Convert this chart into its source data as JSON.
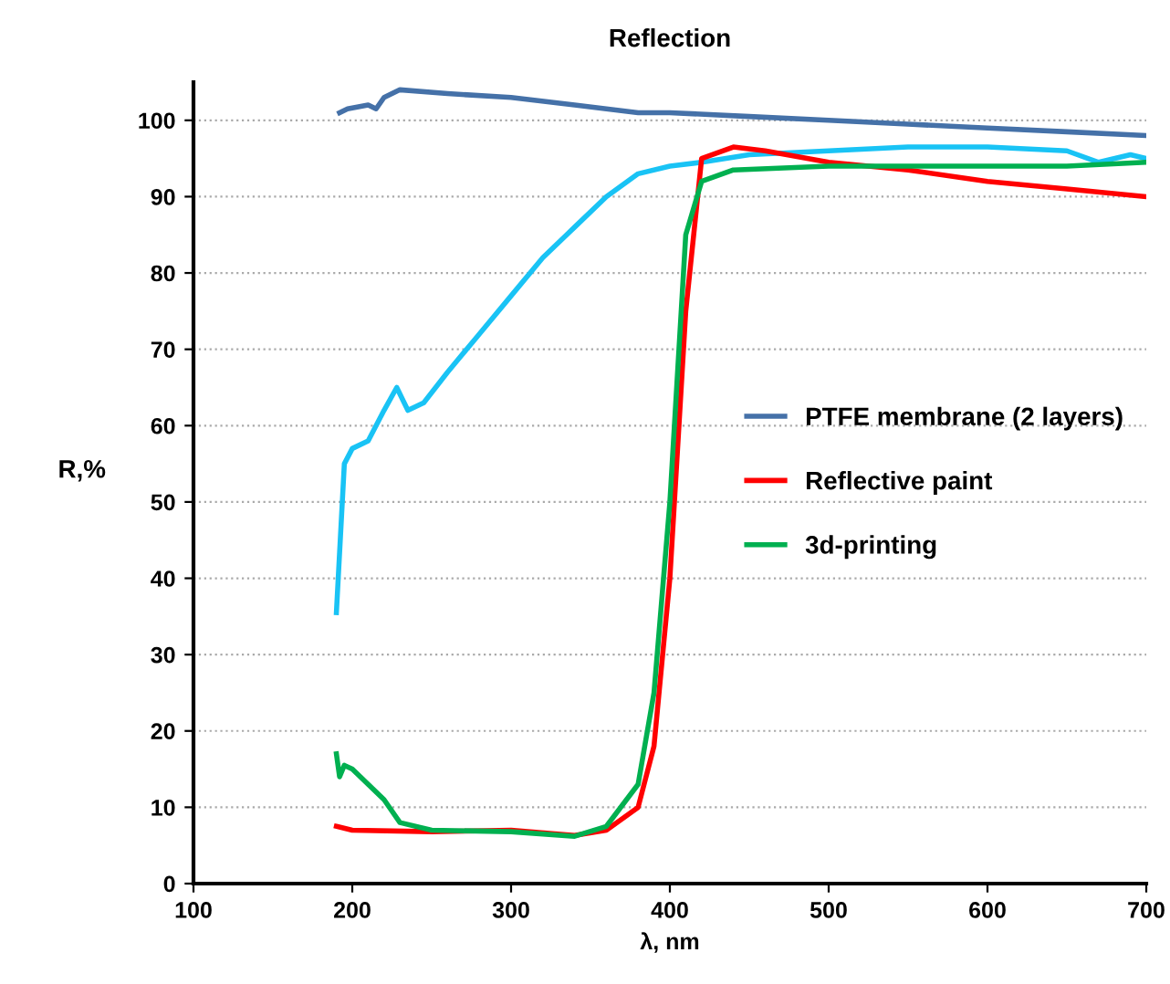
{
  "chart_data": {
    "type": "line",
    "title": "Reflection",
    "xlabel": "λ, nm",
    "ylabel": "R,%",
    "xlim": [
      100,
      700
    ],
    "xticks": [
      100,
      200,
      300,
      400,
      500,
      600,
      700
    ],
    "ylim": [
      0,
      105
    ],
    "yticks": [
      0,
      10,
      20,
      30,
      40,
      50,
      60,
      70,
      80,
      90,
      100
    ],
    "grid": "y",
    "legend": "right",
    "marker": "none",
    "line_style": "solid",
    "series": [
      {
        "color": "#19c3f5",
        "x": [
          190,
          195,
          200,
          210,
          220,
          228,
          235,
          245,
          260,
          280,
          300,
          320,
          340,
          360,
          380,
          400,
          420,
          450,
          500,
          550,
          600,
          650,
          670,
          690,
          700
        ],
        "values": [
          35.5,
          55,
          57,
          58,
          62,
          65,
          62,
          63,
          67,
          72,
          77,
          82,
          86,
          90,
          93,
          94,
          94.5,
          95.5,
          96,
          96.5,
          96.5,
          96,
          94.5,
          95.5,
          95
        ]
      },
      {
        "name": "PTFE membrane (2 layers)",
        "color": "#4571a8",
        "x": [
          192,
          197,
          210,
          215,
          220,
          230,
          260,
          300,
          340,
          380,
          400,
          450,
          500,
          550,
          600,
          650,
          700
        ],
        "values": [
          101,
          101.5,
          102,
          101.5,
          103,
          104,
          103.5,
          103,
          102,
          101,
          101,
          100.5,
          100,
          99.5,
          99,
          98.5,
          98
        ]
      },
      {
        "name": "Reflective paint",
        "color": "#ff0000",
        "x": [
          190,
          200,
          250,
          300,
          340,
          360,
          380,
          390,
          400,
          410,
          420,
          440,
          460,
          500,
          550,
          600,
          650,
          700
        ],
        "values": [
          7.5,
          7,
          6.8,
          7,
          6.3,
          7,
          10,
          18,
          40,
          75,
          95,
          96.5,
          96,
          94.5,
          93.5,
          92,
          91,
          90
        ]
      },
      {
        "name": "3d-printing",
        "color": "#00b050",
        "x": [
          190,
          192,
          195,
          200,
          210,
          220,
          230,
          250,
          300,
          340,
          360,
          380,
          390,
          400,
          410,
          420,
          440,
          500,
          550,
          600,
          650,
          700
        ],
        "values": [
          17,
          14,
          15.5,
          15,
          13,
          11,
          8,
          7,
          6.8,
          6.2,
          7.5,
          13,
          25,
          50,
          85,
          92,
          93.5,
          94,
          94,
          94,
          94,
          94.5
        ]
      }
    ]
  }
}
